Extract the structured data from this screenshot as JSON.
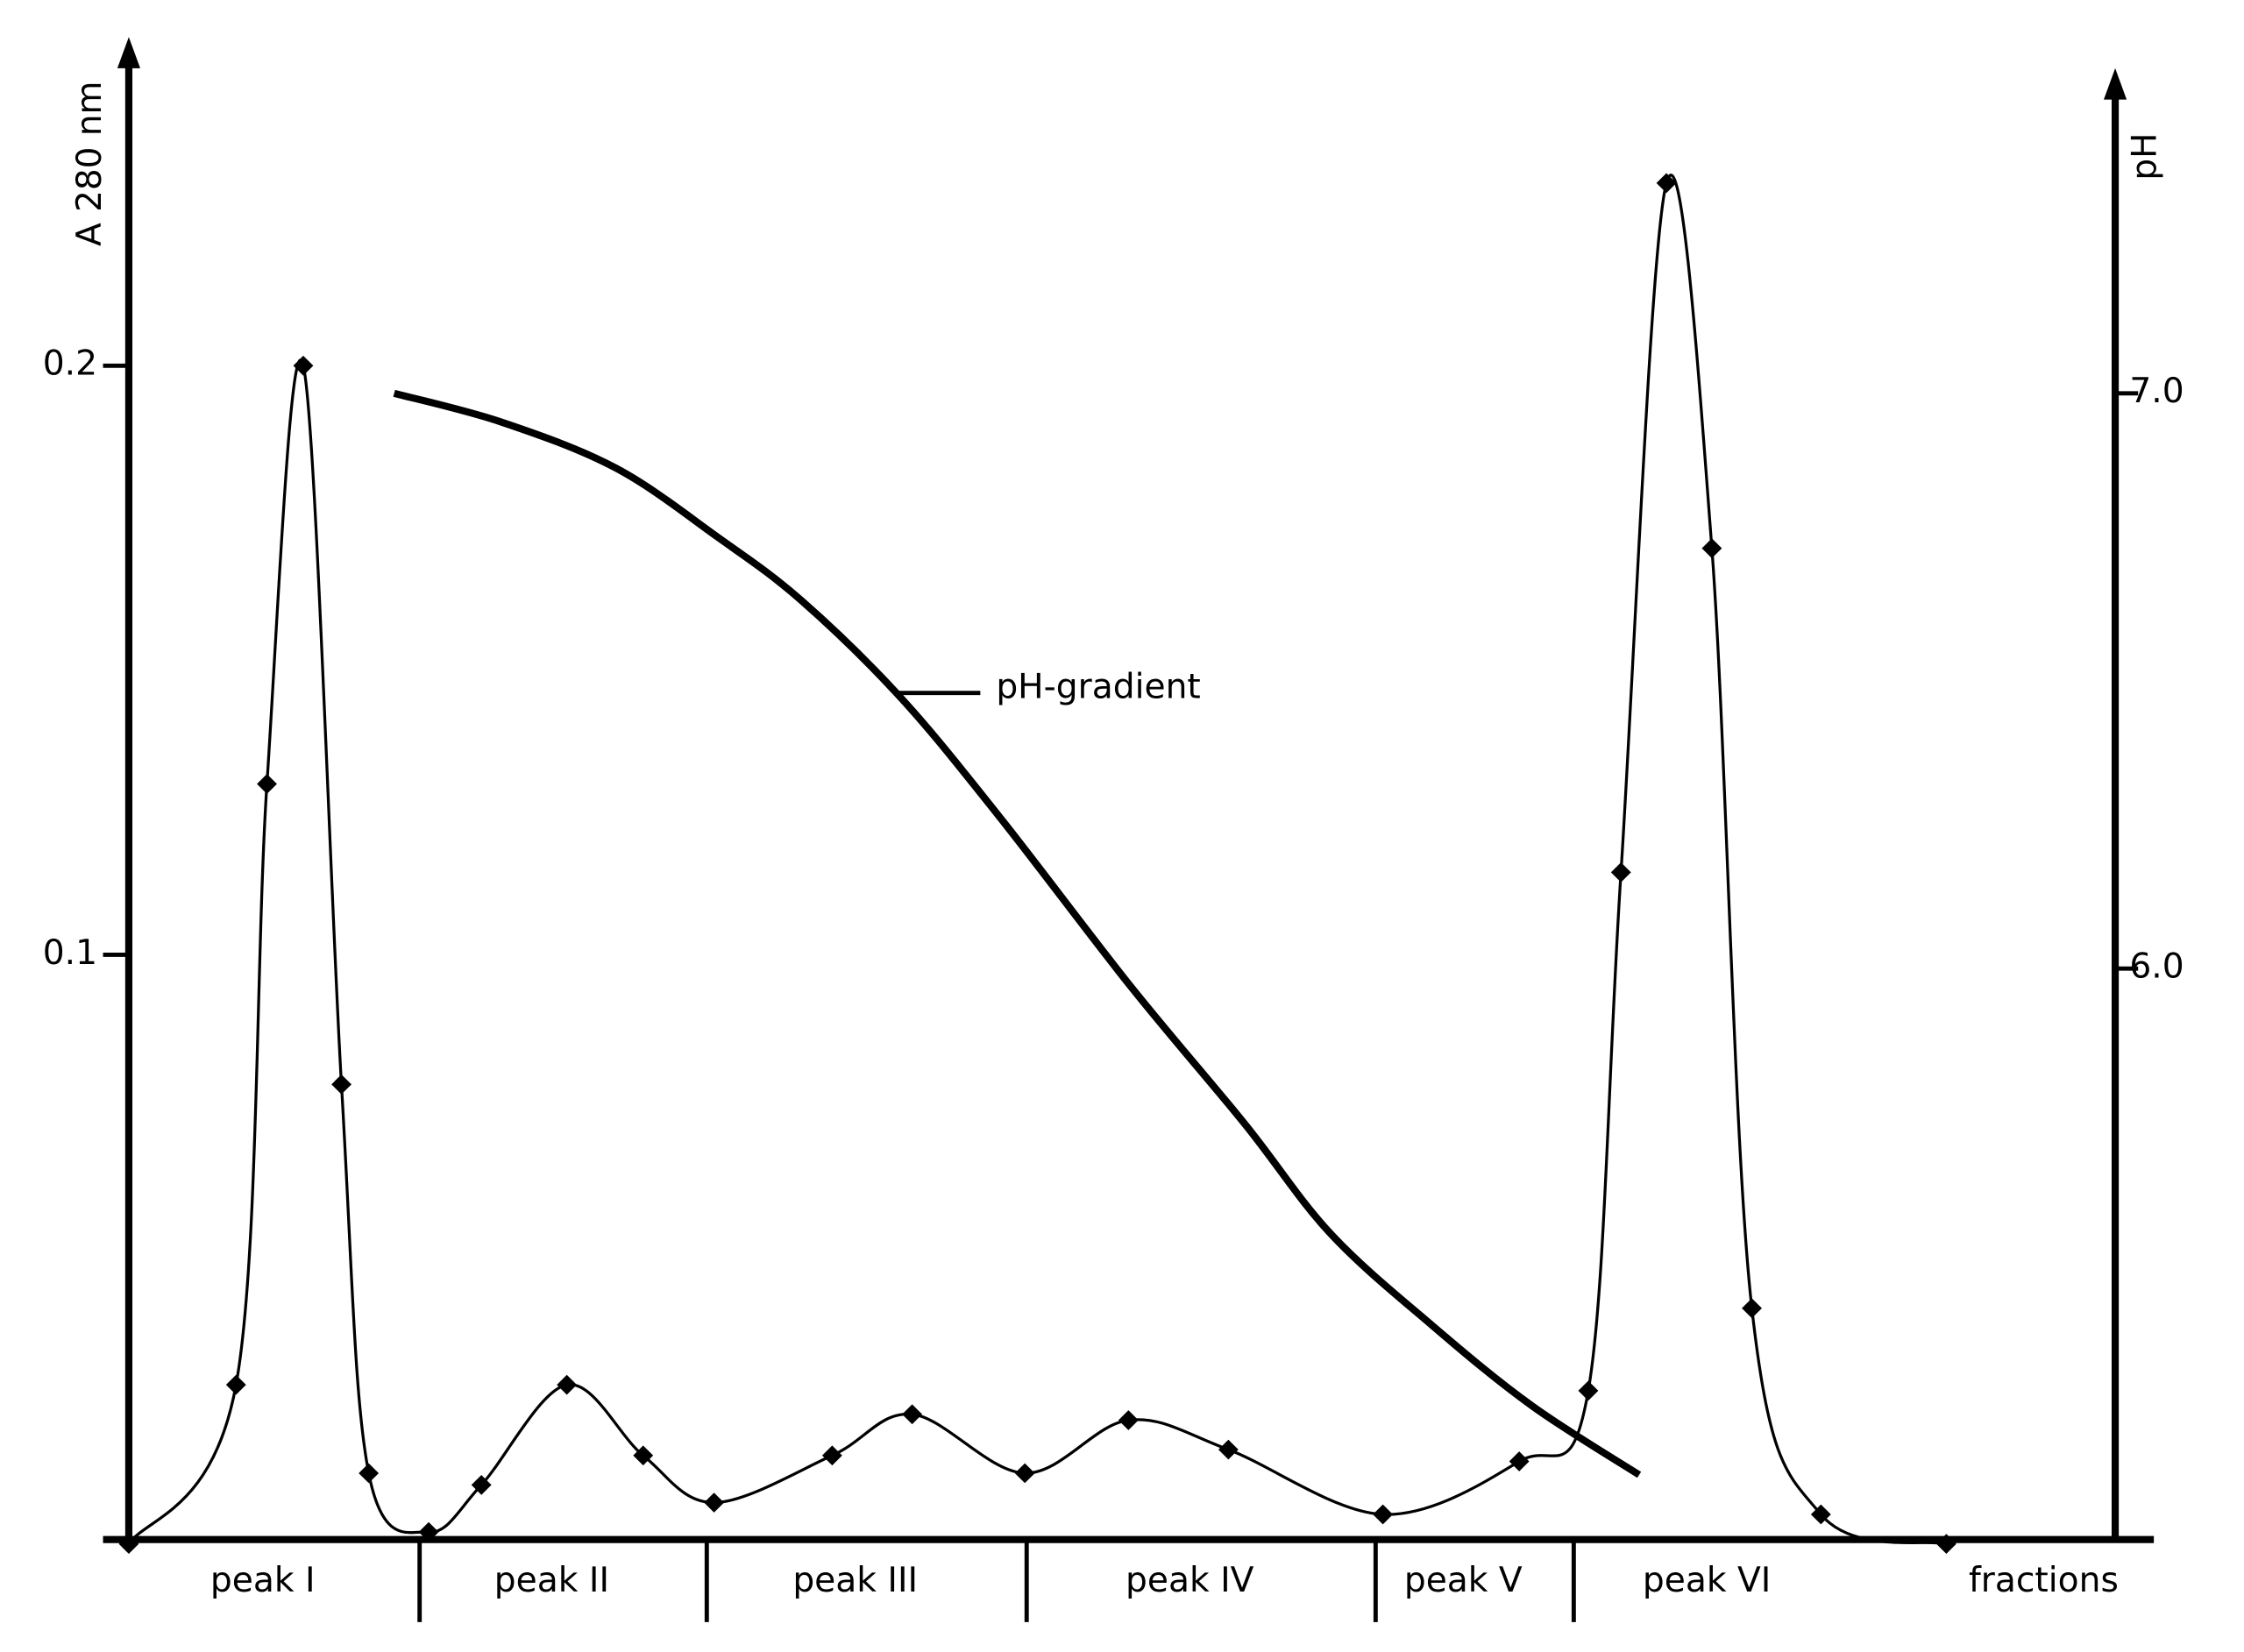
{
  "chart_data": {
    "type": "line",
    "y_label": "A 280 nm",
    "y2_label": "pH",
    "x_label": "fractions",
    "annotation": "pH-gradient",
    "xlim": [
      0,
      100
    ],
    "ylim": [
      0,
      0.25
    ],
    "yticks": [
      0.1,
      0.2
    ],
    "y2lim": [
      5,
      7.56
    ],
    "y2ticks": [
      {
        "value": 6,
        "label": "6.0"
      },
      {
        "value": 7,
        "label": "7.0"
      }
    ],
    "categories": [
      "peak I",
      "peak II",
      "peak III",
      "peak IV",
      "peak V",
      "peak VI"
    ],
    "category_edges": [
      0,
      16.0,
      31.8,
      49.4,
      68.6,
      79.5,
      95.4
    ],
    "series": [
      {
        "color": "#000000",
        "markers": true,
        "x": [
          0,
          5.9,
          7.6,
          9.6,
          11.7,
          13.2,
          16.5,
          19.4,
          24.1,
          28.3,
          32.2,
          38.7,
          43.1,
          49.3,
          55.0,
          60.5,
          69.0,
          76.5,
          80.3,
          82.1,
          84.6,
          87.1,
          89.3,
          93.1,
          100
        ],
        "values": [
          0,
          0.027,
          0.129,
          0.2,
          0.078,
          0.012,
          0.002,
          0.01,
          0.027,
          0.015,
          0.007,
          0.015,
          0.022,
          0.012,
          0.021,
          0.016,
          0.005,
          0.014,
          0.026,
          0.114,
          0.231,
          0.169,
          0.04,
          0.005,
          0
        ]
      },
      {
        "color": "#000000",
        "axis": "y2",
        "markers": false,
        "x": [
          14.6,
          20.5,
          26.8,
          32.4,
          37.0,
          42.5,
          48.0,
          55.1,
          61.4,
          66.1,
          71.7,
          77.2,
          83.1
        ],
        "values": [
          7.0,
          6.95,
          6.87,
          6.75,
          6.64,
          6.47,
          6.26,
          5.97,
          5.73,
          5.54,
          5.38,
          5.24,
          5.12
        ]
      }
    ]
  }
}
